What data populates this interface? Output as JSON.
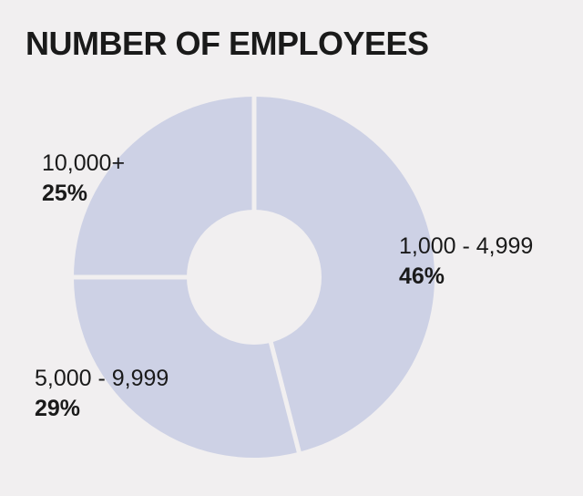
{
  "chart_data": {
    "type": "pie",
    "title": "NUMBER OF EMPLOYEES",
    "slices": [
      {
        "label": "1,000 - 4,999",
        "value": 46,
        "value_label": "46%"
      },
      {
        "label": "5,000 - 9,999",
        "value": 29,
        "value_label": "29%"
      },
      {
        "label": "10,000+",
        "value": 25,
        "value_label": "25%"
      }
    ],
    "donut": true,
    "slice_color": "#cdd1e5",
    "separator_color": "#f1eff0",
    "hole_color": "#f1eff0",
    "start": "top",
    "direction": "clockwise"
  }
}
